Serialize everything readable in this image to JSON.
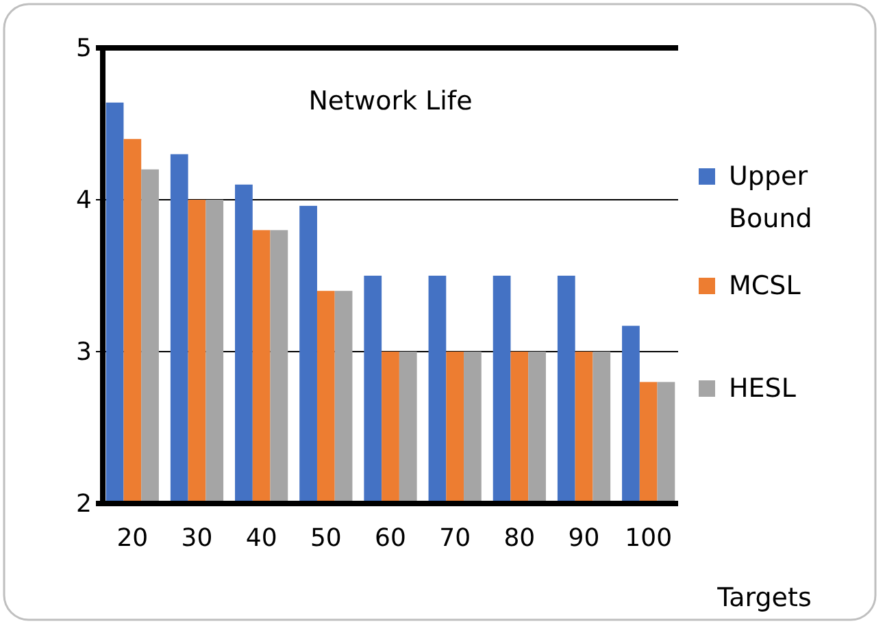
{
  "chart_data": {
    "type": "bar",
    "title": "Network Life",
    "xlabel": "Targets",
    "categories": [
      "20",
      "30",
      "40",
      "50",
      "60",
      "70",
      "80",
      "90",
      "100"
    ],
    "series": [
      {
        "name": "Upper Bound",
        "color": "#4472c4",
        "values": [
          4.64,
          4.3,
          4.1,
          3.96,
          3.5,
          3.5,
          3.5,
          3.5,
          3.17
        ]
      },
      {
        "name": "MCSL",
        "color": "#ed7d31",
        "values": [
          4.4,
          4.0,
          3.8,
          3.4,
          3.0,
          3.0,
          3.0,
          3.0,
          2.8
        ]
      },
      {
        "name": "HESL",
        "color": "#a5a5a5",
        "values": [
          4.2,
          4.0,
          3.8,
          3.4,
          3.0,
          3.0,
          3.0,
          3.0,
          2.8
        ]
      }
    ],
    "ylim": [
      2,
      5
    ],
    "yticks": [
      2,
      3,
      4,
      5
    ],
    "grid": "y",
    "legend": "right"
  }
}
